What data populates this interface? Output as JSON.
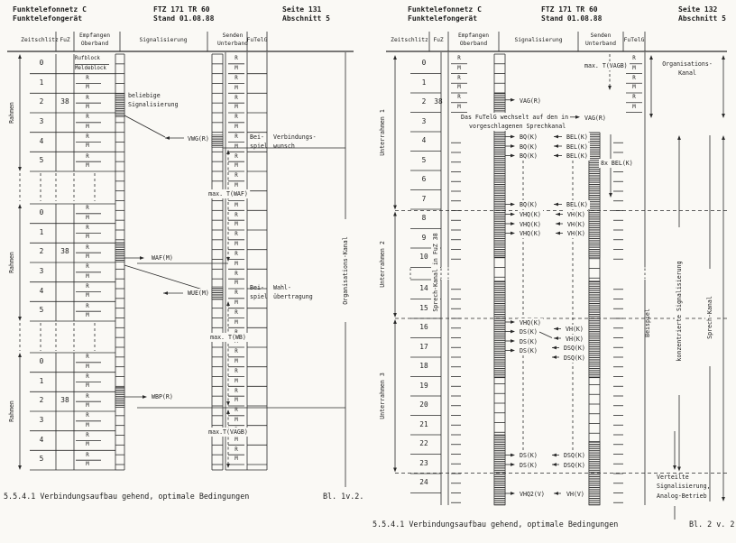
{
  "left": {
    "header": {
      "product1": "Funktelefonnetz C",
      "product2": "Funktelefongerät",
      "doc1": "FTZ 171 TR 60",
      "doc2": "Stand 01.08.88",
      "page": "Seite 131",
      "section": "Abschnitt 5"
    },
    "cols": {
      "zeitschlitz": "Zeitschlitz",
      "fuz": "FuZ",
      "empfangen1": "Empfangen",
      "empfangen2": "Oberband",
      "signalisierung": "Signalisierung",
      "senden1": "Senden",
      "senden2": "Unterband",
      "futelg": "FuTelG"
    },
    "frame_label": "Rahmen",
    "slots": [
      "0",
      "1",
      "2",
      "3",
      "4",
      "5"
    ],
    "fuz_value": "38",
    "rm": [
      "R",
      "M"
    ],
    "slot0_labels": [
      "Rufblock",
      "Meldeblock"
    ],
    "ann": {
      "beliebige": "beliebige\nSignalisierung",
      "vwg": "VWG(R)",
      "beispiel": "Bei-\nspiel",
      "verbindungswunsch": "Verbindungs-\nwunsch",
      "max_twaf": "max. T(WAF)",
      "waf": "WAF(M)",
      "wue": "WUE(M)",
      "wahluebertragung": "Wahl-\nübertragung",
      "max_twb": "max. T(WB)",
      "wbp": "WBP(R)",
      "max_tvagb": "max.T(VAGB)",
      "org_kanal": "Organisations-Kanal"
    },
    "caption": "5.5.4.1 Verbindungsaufbau gehend, optimale Bedingungen",
    "sheet": "Bl. 1v.2."
  },
  "right": {
    "header": {
      "product1": "Funktelefonnetz C",
      "product2": "Funktelefongerät",
      "doc1": "FTZ 171 TR 60",
      "doc2": "Stand 01.08.88",
      "page": "Seite 132",
      "section": "Abschnitt 5"
    },
    "cols": {
      "zeitschlitz": "Zeitschlitz",
      "fuz": "FuZ",
      "empfangen1": "Empfangen",
      "empfangen2": "Oberband",
      "signalisierung": "Signalisierung",
      "senden1": "Senden",
      "senden2": "Unterband",
      "futelg": "FuTelG"
    },
    "rows": [
      "0",
      "1",
      "2",
      "3",
      "4",
      "5",
      "6",
      "7",
      "8",
      "9",
      "10",
      "14",
      "15",
      "16",
      "17",
      "18",
      "19",
      "20",
      "21",
      "22",
      "23",
      "24"
    ],
    "fuz_value": "38",
    "rm": [
      "R",
      "M"
    ],
    "unterrahmen": [
      "Unterrahmen 1",
      "Unterrahmen 2",
      "Unterrahmen 3"
    ],
    "sprechkanal_fuz": "Sprech-Kanal in FuZ 38",
    "ann": {
      "max_tvagb": "max. T(VAGB)",
      "vag": "VAG(R)",
      "wechsel1": "Das FuTelG wechselt auf den in",
      "wechsel2": "vorgeschlagenen Sprechkanal",
      "bq": "BQ(K)",
      "bel": "BEL(K)",
      "bel8": "8x BEL(K)",
      "vhq": "VHQ(K)",
      "vh": "VH(K)",
      "ds": "DS(K)",
      "dsq": "DSQ(K)",
      "vhq2": "VHQ2(V)",
      "vhv": "VH(V)",
      "org1": "Organisations-",
      "org2": "Kanal",
      "beispiel": "Beispiel",
      "konzentrierte": "konzentrierte Signalisierung",
      "sprechkanal": "Sprech-Kanal",
      "verteilte1": "Verteilte",
      "verteilte2": "Signalisierung,",
      "verteilte3": "Analog-Betrieb"
    },
    "caption": "5.5.4.1 Verbindungsaufbau gehend, optimale Bedingungen",
    "sheet": "Bl. 2 v. 2"
  }
}
